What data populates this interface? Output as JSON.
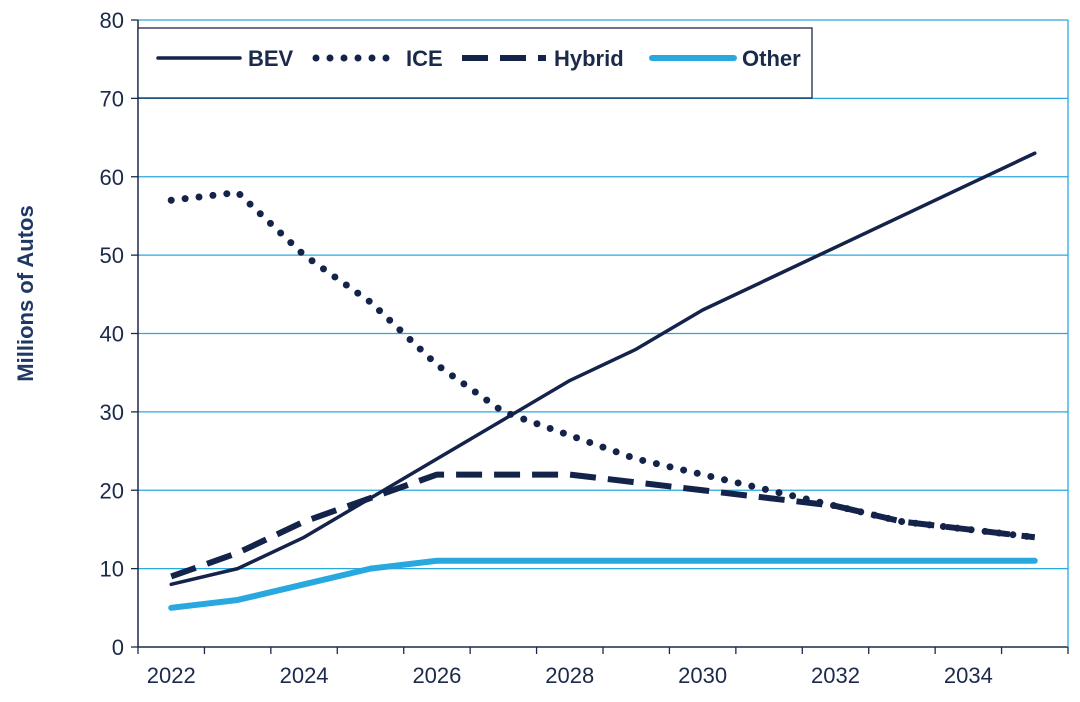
{
  "chart_data": {
    "type": "line",
    "title": "",
    "xlabel": "",
    "ylabel": "Millions of Autos",
    "x": [
      2022,
      2023,
      2024,
      2025,
      2026,
      2027,
      2028,
      2029,
      2030,
      2031,
      2032,
      2033,
      2034,
      2035
    ],
    "xlim": [
      2021.5,
      2035.5
    ],
    "xticks": [
      "2022",
      "2024",
      "2026",
      "2028",
      "2030",
      "2032",
      "2034"
    ],
    "ylim": [
      0,
      80
    ],
    "yticks": [
      "0",
      "10",
      "20",
      "30",
      "40",
      "50",
      "60",
      "70",
      "80"
    ],
    "grid": "horizontal",
    "legend": "top-left",
    "series": [
      {
        "name": "BEV",
        "style": "solid",
        "color": "#13234a",
        "values": [
          8,
          10,
          14,
          19,
          24,
          29,
          34,
          38,
          43,
          47,
          51,
          55,
          59,
          63
        ]
      },
      {
        "name": "ICE",
        "style": "dotted",
        "color": "#13234a",
        "values": [
          57,
          58,
          50,
          44,
          36,
          30,
          27,
          24,
          22,
          20,
          18,
          16,
          15,
          14
        ]
      },
      {
        "name": "Hybrid",
        "style": "dashed",
        "color": "#13234a",
        "values": [
          9,
          12,
          16,
          19,
          22,
          22,
          22,
          21,
          20,
          19,
          18,
          16,
          15,
          14
        ]
      },
      {
        "name": "Other",
        "style": "solid",
        "color": "#29a8e0",
        "values": [
          5,
          6,
          8,
          10,
          11,
          11,
          11,
          11,
          11,
          11,
          11,
          11,
          11,
          11
        ]
      }
    ]
  }
}
